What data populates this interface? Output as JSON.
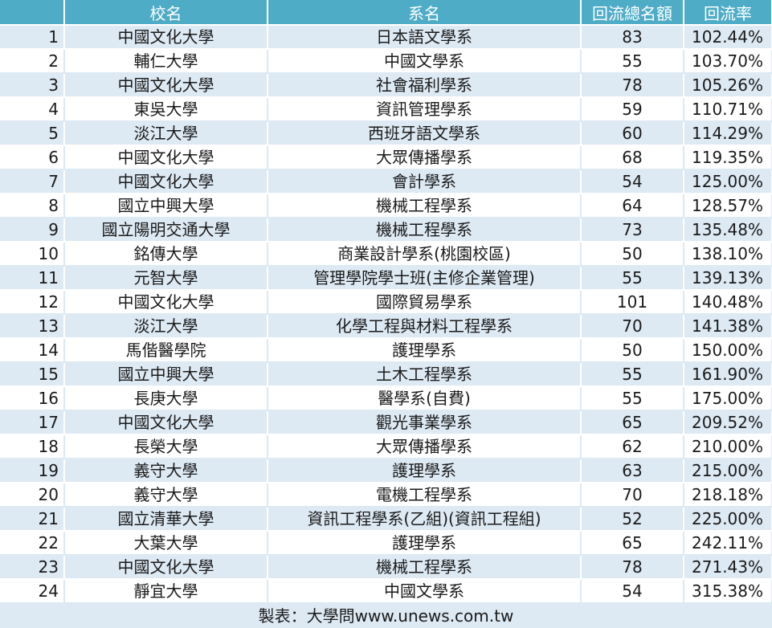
{
  "headers": {
    "index": "",
    "school": "校名",
    "department": "系名",
    "total": "回流總名額",
    "rate": "回流率"
  },
  "rows": [
    {
      "index": "1",
      "school": "中國文化大學",
      "department": "日本語文學系",
      "total": "83",
      "rate": "102.44%"
    },
    {
      "index": "2",
      "school": "輔仁大學",
      "department": "中國文學系",
      "total": "55",
      "rate": "103.70%"
    },
    {
      "index": "3",
      "school": "中國文化大學",
      "department": "社會福利學系",
      "total": "78",
      "rate": "105.26%"
    },
    {
      "index": "4",
      "school": "東吳大學",
      "department": "資訊管理學系",
      "total": "59",
      "rate": "110.71%"
    },
    {
      "index": "5",
      "school": "淡江大學",
      "department": "西班牙語文學系",
      "total": "60",
      "rate": "114.29%"
    },
    {
      "index": "6",
      "school": "中國文化大學",
      "department": "大眾傳播學系",
      "total": "68",
      "rate": "119.35%"
    },
    {
      "index": "7",
      "school": "中國文化大學",
      "department": "會計學系",
      "total": "54",
      "rate": "125.00%"
    },
    {
      "index": "8",
      "school": "國立中興大學",
      "department": "機械工程學系",
      "total": "64",
      "rate": "128.57%"
    },
    {
      "index": "9",
      "school": "國立陽明交通大學",
      "department": "機械工程學系",
      "total": "73",
      "rate": "135.48%"
    },
    {
      "index": "10",
      "school": "銘傳大學",
      "department": "商業設計學系(桃園校區)",
      "total": "50",
      "rate": "138.10%"
    },
    {
      "index": "11",
      "school": "元智大學",
      "department": "管理學院學士班(主修企業管理)",
      "total": "55",
      "rate": "139.13%"
    },
    {
      "index": "12",
      "school": "中國文化大學",
      "department": "國際貿易學系",
      "total": "101",
      "rate": "140.48%"
    },
    {
      "index": "13",
      "school": "淡江大學",
      "department": "化學工程與材料工程學系",
      "total": "70",
      "rate": "141.38%"
    },
    {
      "index": "14",
      "school": "馬偕醫學院",
      "department": "護理學系",
      "total": "50",
      "rate": "150.00%"
    },
    {
      "index": "15",
      "school": "國立中興大學",
      "department": "土木工程學系",
      "total": "55",
      "rate": "161.90%"
    },
    {
      "index": "16",
      "school": "長庚大學",
      "department": "醫學系(自費)",
      "total": "55",
      "rate": "175.00%"
    },
    {
      "index": "17",
      "school": "中國文化大學",
      "department": "觀光事業學系",
      "total": "65",
      "rate": "209.52%"
    },
    {
      "index": "18",
      "school": "長榮大學",
      "department": "大眾傳播學系",
      "total": "62",
      "rate": "210.00%"
    },
    {
      "index": "19",
      "school": "義守大學",
      "department": "護理學系",
      "total": "63",
      "rate": "215.00%"
    },
    {
      "index": "20",
      "school": "義守大學",
      "department": "電機工程學系",
      "total": "70",
      "rate": "218.18%"
    },
    {
      "index": "21",
      "school": "國立清華大學",
      "department": "資訊工程學系(乙組)(資訊工程組)",
      "total": "52",
      "rate": "225.00%"
    },
    {
      "index": "22",
      "school": "大葉大學",
      "department": "護理學系",
      "total": "65",
      "rate": "242.11%"
    },
    {
      "index": "23",
      "school": "中國文化大學",
      "department": "機械工程學系",
      "total": "78",
      "rate": "271.43%"
    },
    {
      "index": "24",
      "school": "靜宜大學",
      "department": "中國文學系",
      "total": "54",
      "rate": "315.38%"
    }
  ],
  "footer": "製表：大學問www.unews.com.tw",
  "colors": {
    "header_bg": "#4eacc6",
    "stripe_bg": "#dde9f3"
  }
}
